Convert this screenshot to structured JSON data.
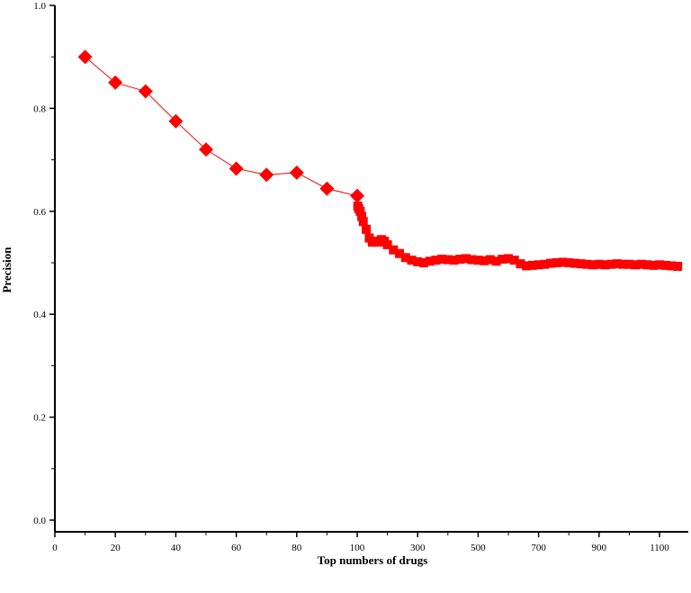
{
  "chart_data": {
    "type": "line",
    "title": "",
    "xlabel": "Top numbers of drugs",
    "ylabel": "Precision",
    "ylim": [
      0,
      1.0
    ],
    "x_axis_scale": "piecewise-linear: 0-100 step 10, then 100-1100 step 200 compressed",
    "x_ticks": [
      "0",
      "20",
      "40",
      "60",
      "80",
      "100",
      "300",
      "500",
      "700",
      "900",
      "1100"
    ],
    "y_ticks": [
      "0.0",
      "0.2",
      "0.4",
      "0.6",
      "0.8",
      "1.0"
    ],
    "grid": false,
    "legend": "none",
    "series": [
      {
        "color": "#ff0000",
        "marker": "diamond",
        "x": [
          10,
          20,
          30,
          40,
          50,
          60,
          70,
          80,
          90,
          100
        ],
        "y": [
          0.9,
          0.85,
          0.833,
          0.775,
          0.72,
          0.683,
          0.671,
          0.675,
          0.644,
          0.63
        ]
      },
      {
        "color": "#ff0000",
        "marker": "square",
        "x": [
          102,
          105,
          110,
          115,
          120,
          130,
          140,
          150,
          160,
          170,
          180,
          190,
          200,
          220,
          240,
          260,
          280,
          300,
          320,
          340,
          360,
          380,
          400,
          420,
          440,
          460,
          480,
          500,
          520,
          540,
          560,
          580,
          600,
          620,
          640,
          660,
          680,
          700,
          720,
          740,
          760,
          780,
          800,
          820,
          840,
          860,
          880,
          900,
          920,
          940,
          960,
          980,
          1000,
          1020,
          1040,
          1060,
          1080,
          1100,
          1120,
          1140,
          1160
        ],
        "y": [
          0.61,
          0.605,
          0.6,
          0.59,
          0.58,
          0.565,
          0.548,
          0.54,
          0.542,
          0.54,
          0.545,
          0.542,
          0.535,
          0.525,
          0.518,
          0.51,
          0.505,
          0.502,
          0.5,
          0.503,
          0.505,
          0.507,
          0.506,
          0.505,
          0.507,
          0.508,
          0.506,
          0.505,
          0.504,
          0.506,
          0.503,
          0.507,
          0.508,
          0.505,
          0.498,
          0.494,
          0.495,
          0.496,
          0.497,
          0.499,
          0.5,
          0.501,
          0.5,
          0.499,
          0.498,
          0.497,
          0.496,
          0.497,
          0.496,
          0.497,
          0.498,
          0.497,
          0.497,
          0.496,
          0.497,
          0.496,
          0.495,
          0.496,
          0.495,
          0.494,
          0.493
        ]
      }
    ]
  }
}
